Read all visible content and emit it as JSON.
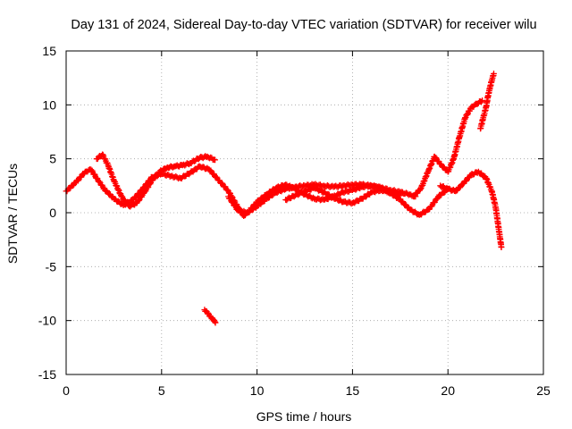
{
  "chart_data": {
    "type": "scatter",
    "title": "Day 131 of 2024, Sidereal Day-to-day VTEC variation (SDTVAR) for receiver wilu",
    "xlabel": "GPS time / hours",
    "ylabel": "SDTVAR / TECUs",
    "xlim": [
      0,
      25
    ],
    "ylim": [
      -15,
      15
    ],
    "xticks": [
      0,
      5,
      10,
      15,
      20,
      25
    ],
    "yticks": [
      -15,
      -10,
      -5,
      0,
      5,
      10,
      15
    ],
    "xtick_labels": [
      "0",
      "5",
      "10",
      "15",
      "20",
      "25"
    ],
    "ytick_labels": [
      "-15",
      "-10",
      "-5",
      "0",
      "5",
      "10",
      "15"
    ],
    "grid": true,
    "marker": "+",
    "series_color": "#ff0000",
    "series": [
      {
        "name": "main-trace",
        "x": [
          0.0,
          0.5,
          1.0,
          1.3,
          1.6,
          2.0,
          2.5,
          3.0,
          3.5,
          4.0,
          4.5,
          5.0,
          5.5,
          6.0,
          6.5,
          7.0,
          7.5,
          8.0,
          8.5,
          9.0,
          9.3,
          9.6,
          10.0,
          10.5,
          11.0,
          11.5,
          12.0,
          12.5,
          13.0,
          13.5,
          14.0,
          14.5,
          15.0,
          15.5,
          16.0,
          16.5,
          17.0,
          17.5,
          18.0,
          18.3
        ],
        "y": [
          2.0,
          2.8,
          3.8,
          4.0,
          3.2,
          2.2,
          1.3,
          0.7,
          1.2,
          2.2,
          3.3,
          3.6,
          3.4,
          3.2,
          3.7,
          4.3,
          4.0,
          3.0,
          2.0,
          0.5,
          -0.3,
          0.2,
          1.0,
          1.7,
          2.3,
          2.6,
          2.2,
          1.7,
          1.3,
          1.2,
          1.5,
          1.9,
          2.1,
          2.4,
          2.5,
          2.3,
          2.1,
          1.9,
          1.7,
          1.5
        ]
      },
      {
        "name": "upper-arc",
        "x": [
          1.6,
          1.9,
          2.2,
          2.5,
          2.9,
          3.3,
          3.7,
          4.1,
          4.5,
          4.9,
          5.3,
          5.7,
          6.1,
          6.5,
          7.0,
          7.4,
          7.8
        ],
        "y": [
          5.0,
          5.4,
          4.4,
          3.0,
          1.5,
          0.6,
          0.9,
          1.9,
          3.0,
          3.8,
          4.2,
          4.3,
          4.4,
          4.6,
          5.1,
          5.2,
          4.9
        ]
      },
      {
        "name": "lower-band",
        "x": [
          8.5,
          9.0,
          9.5,
          10.0,
          10.5,
          11.0,
          11.5,
          12.0,
          12.5,
          13.0,
          13.5,
          14.0,
          14.5,
          15.0,
          15.5,
          16.0,
          16.5,
          17.0,
          17.5,
          18.0,
          18.5,
          19.0,
          19.5,
          20.0
        ],
        "y": [
          1.5,
          0.2,
          0.0,
          0.6,
          1.3,
          1.9,
          2.2,
          2.4,
          2.5,
          2.6,
          2.5,
          2.4,
          2.5,
          2.6,
          2.6,
          2.5,
          2.3,
          1.8,
          1.2,
          0.3,
          -0.2,
          0.3,
          1.5,
          2.2
        ]
      },
      {
        "name": "mid-band",
        "x": [
          11.5,
          12.0,
          12.5,
          13.0,
          13.5,
          14.0,
          14.5,
          15.0,
          15.5,
          16.0,
          16.5,
          17.0,
          17.5
        ],
        "y": [
          1.2,
          1.6,
          2.0,
          2.3,
          1.9,
          1.4,
          1.0,
          0.9,
          1.3,
          1.9,
          2.1,
          1.9,
          1.6
        ]
      },
      {
        "name": "late-rise",
        "x": [
          18.2,
          18.6,
          19.0,
          19.3,
          19.6,
          20.0,
          20.3,
          20.6,
          20.9,
          21.2,
          21.5,
          21.8
        ],
        "y": [
          1.5,
          2.3,
          4.0,
          5.2,
          4.5,
          3.8,
          5.0,
          7.0,
          8.8,
          9.7,
          10.1,
          10.4
        ]
      },
      {
        "name": "steep-rise",
        "x": [
          21.7,
          21.85,
          22.0,
          22.1,
          22.2,
          22.3,
          22.4
        ],
        "y": [
          7.8,
          8.8,
          9.8,
          10.8,
          11.6,
          12.3,
          12.9
        ]
      },
      {
        "name": "late-descent",
        "x": [
          19.6,
          20.0,
          20.4,
          20.8,
          21.2,
          21.6,
          22.0,
          22.3,
          22.5,
          22.7,
          22.8
        ],
        "y": [
          2.5,
          2.2,
          2.0,
          2.7,
          3.5,
          3.8,
          3.2,
          2.0,
          0.5,
          -2.0,
          -3.2
        ]
      },
      {
        "name": "isolated-segment",
        "x": [
          7.25,
          7.4,
          7.55,
          7.7,
          7.82
        ],
        "y": [
          -9.0,
          -9.3,
          -9.6,
          -9.9,
          -10.2
        ]
      }
    ]
  }
}
